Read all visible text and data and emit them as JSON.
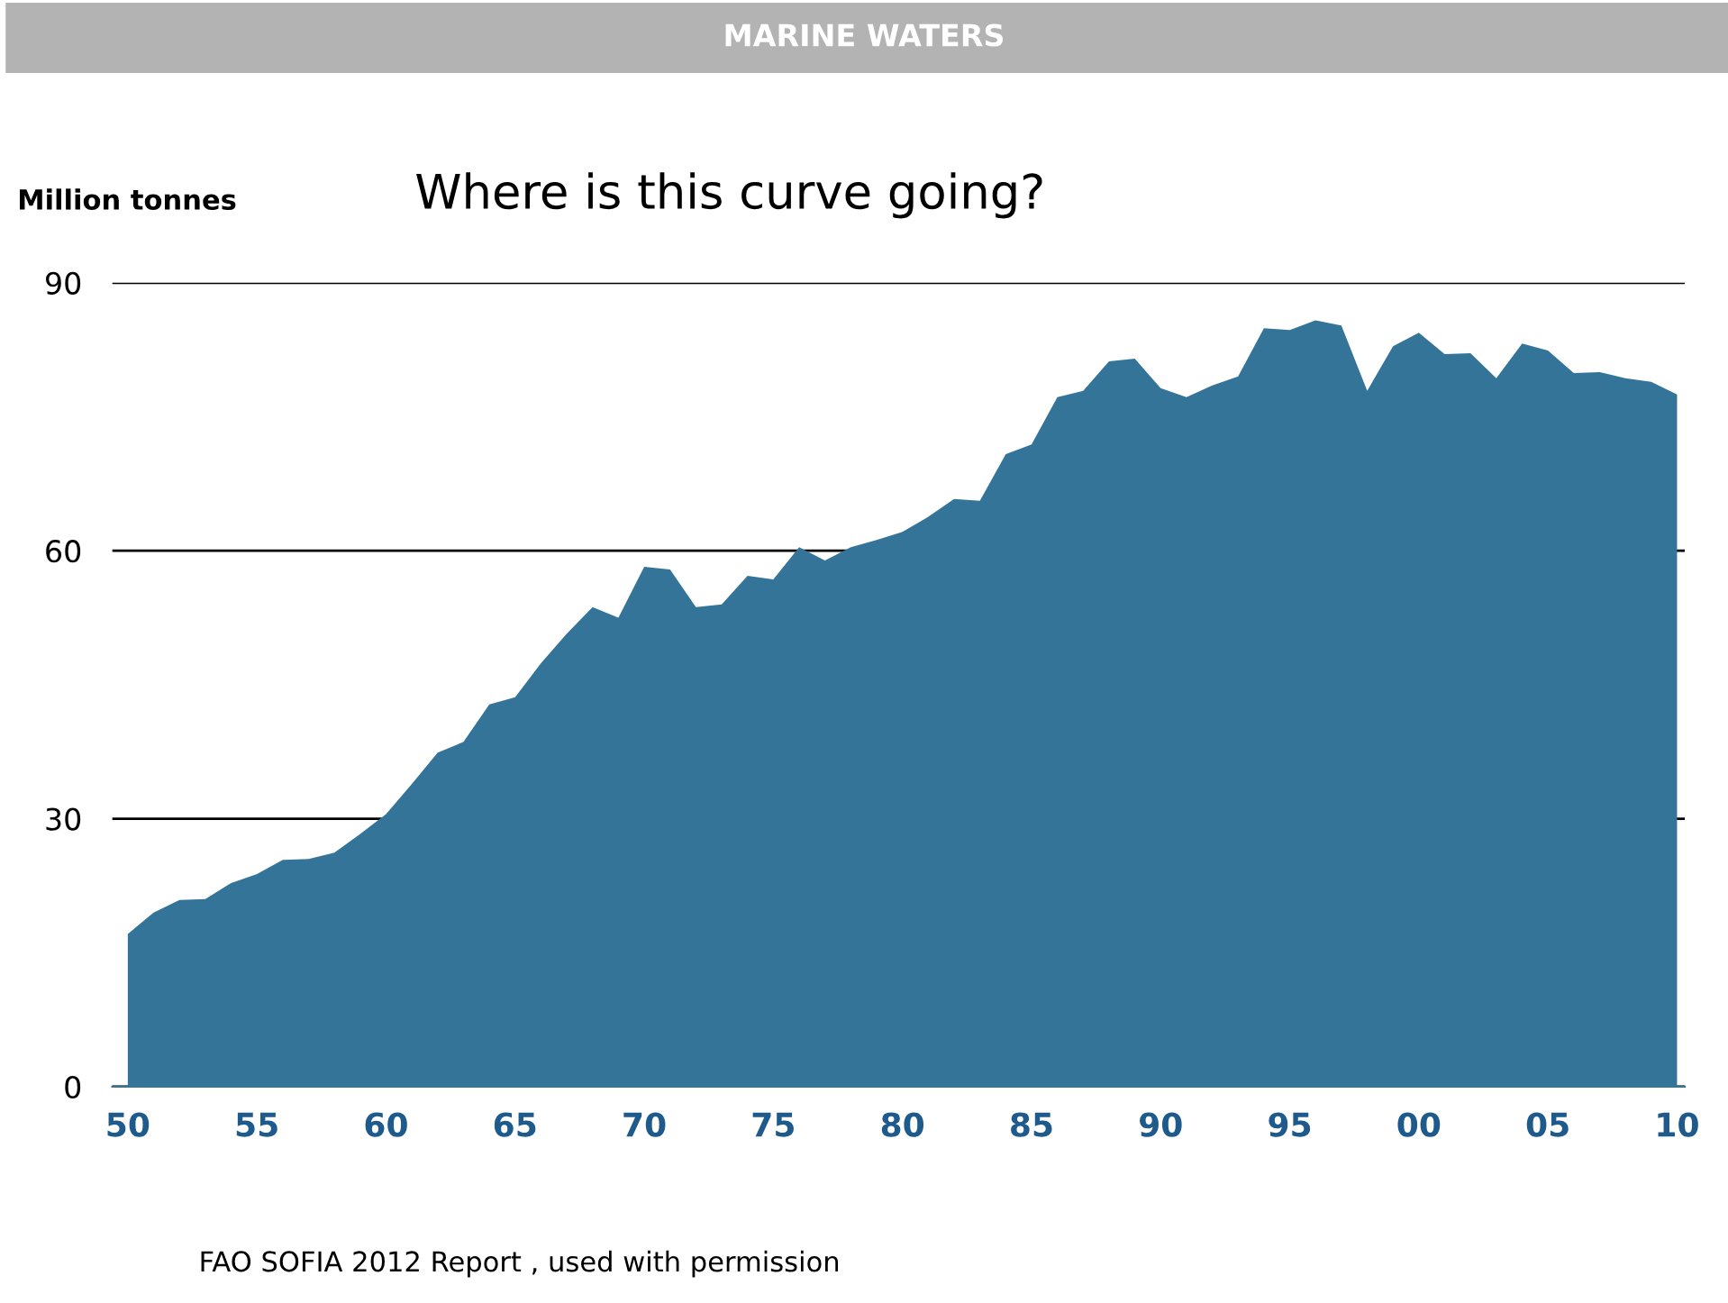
{
  "chart_data": {
    "type": "area",
    "title": "MARINE WATERS",
    "ylabel": "Million tonnes",
    "annotations": [
      "Where is this curve going?",
      "FAO SOFIA 2012 Report , used with permission"
    ],
    "x": [
      1950,
      1951,
      1952,
      1953,
      1954,
      1955,
      1956,
      1957,
      1958,
      1959,
      1960,
      1961,
      1962,
      1963,
      1964,
      1965,
      1966,
      1967,
      1968,
      1969,
      1970,
      1971,
      1972,
      1973,
      1974,
      1975,
      1976,
      1977,
      1978,
      1979,
      1980,
      1981,
      1982,
      1983,
      1984,
      1985,
      1986,
      1987,
      1988,
      1989,
      1990,
      1991,
      1992,
      1993,
      1994,
      1995,
      1996,
      1997,
      1998,
      1999,
      2000,
      2001,
      2002,
      2003,
      2004,
      2005,
      2006,
      2007,
      2008,
      2009,
      2010
    ],
    "series": [
      {
        "color": "#357499",
        "values": [
          17.1,
          19.5,
          20.9,
          21.0,
          22.8,
          23.8,
          25.4,
          25.5,
          26.2,
          28.3,
          30.5,
          33.9,
          37.4,
          38.6,
          42.8,
          43.6,
          47.4,
          50.7,
          53.7,
          52.5,
          58.2,
          57.9,
          53.7,
          54.0,
          57.2,
          56.8,
          60.4,
          58.9,
          60.4,
          61.2,
          62.1,
          63.8,
          65.8,
          65.6,
          70.8,
          71.9,
          77.2,
          77.9,
          81.2,
          81.5,
          78.2,
          77.2,
          78.5,
          79.5,
          84.9,
          84.7,
          85.8,
          85.2,
          77.9,
          82.9,
          84.4,
          82.0,
          82.1,
          79.3,
          83.2,
          82.4,
          79.9,
          80.0,
          79.3,
          78.9,
          77.5
        ]
      }
    ],
    "xlim": [
      1949.4,
      2010.3
    ],
    "ylim": [
      0,
      90
    ],
    "xticks": [
      {
        "value": 1950,
        "label": "50"
      },
      {
        "value": 1955,
        "label": "55"
      },
      {
        "value": 1960,
        "label": "60"
      },
      {
        "value": 1965,
        "label": "65"
      },
      {
        "value": 1970,
        "label": "70"
      },
      {
        "value": 1975,
        "label": "75"
      },
      {
        "value": 1980,
        "label": "80"
      },
      {
        "value": 1985,
        "label": "85"
      },
      {
        "value": 1990,
        "label": "90"
      },
      {
        "value": 1995,
        "label": "95"
      },
      {
        "value": 2000,
        "label": "00"
      },
      {
        "value": 2005,
        "label": "05"
      },
      {
        "value": 2010,
        "label": "10"
      }
    ],
    "yticks": [
      0,
      30,
      60,
      90
    ],
    "grid": "y"
  }
}
